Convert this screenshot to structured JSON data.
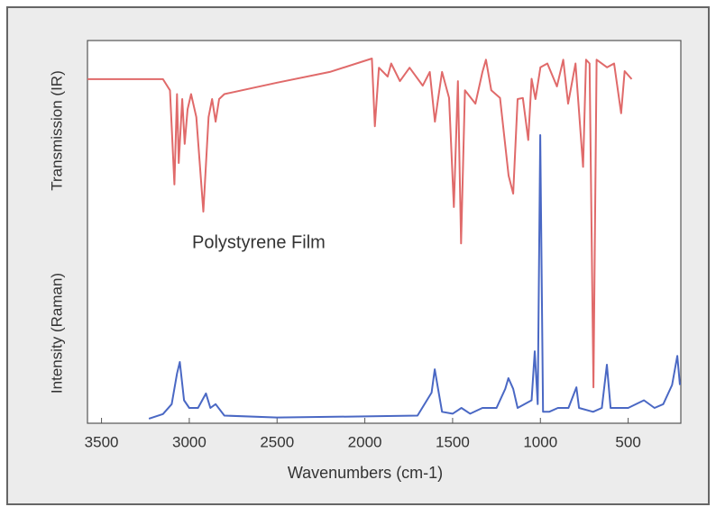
{
  "chart_data": {
    "type": "line",
    "annotation": "Polystyrene Film",
    "x_label": "Wavenumbers  (cm-1)",
    "y_labels": [
      "Intensity (Raman)",
      "Transmission (IR)"
    ],
    "xlim": [
      3580,
      200
    ],
    "ylim": [
      0,
      100
    ],
    "xticks": [
      3500,
      3000,
      2500,
      2000,
      1500,
      1000,
      500
    ],
    "series": [
      {
        "color": "#e06a6a",
        "x": [
          3580,
          3300,
          3150,
          3110,
          3085,
          3070,
          3060,
          3040,
          3026,
          3010,
          2990,
          2960,
          2920,
          2890,
          2870,
          2850,
          2830,
          2800,
          2500,
          2200,
          1960,
          1943,
          1920,
          1870,
          1850,
          1800,
          1745,
          1670,
          1630,
          1601,
          1583,
          1560,
          1520,
          1493,
          1470,
          1452,
          1430,
          1370,
          1330,
          1310,
          1280,
          1230,
          1181,
          1155,
          1130,
          1100,
          1069,
          1050,
          1028,
          1000,
          960,
          906,
          870,
          842,
          800,
          757,
          740,
          720,
          698,
          680,
          620,
          580,
          540,
          520,
          480
        ],
        "values": [
          89.9,
          89.9,
          89.9,
          87,
          62.4,
          86,
          68,
          84.7,
          73,
          82,
          86,
          80,
          55.3,
          80,
          84.7,
          78.8,
          84.7,
          86,
          89,
          91.8,
          95.3,
          77.6,
          92.9,
          90.6,
          94,
          89.4,
          92.9,
          88.2,
          91.8,
          78.8,
          84.7,
          91.8,
          85,
          56.5,
          89.4,
          47,
          87,
          83.5,
          91.8,
          95,
          87,
          85,
          64.7,
          60,
          84.7,
          85,
          74,
          90,
          84.7,
          93,
          94,
          88,
          95,
          83.5,
          94,
          67,
          95,
          94,
          9.4,
          95,
          93,
          94,
          81,
          92,
          89.9
        ]
      },
      {
        "color": "#4a68c4",
        "x": [
          3230,
          3150,
          3100,
          3070,
          3054,
          3030,
          3000,
          2950,
          2905,
          2880,
          2850,
          2800,
          2500,
          2000,
          1700,
          1620,
          1602,
          1583,
          1560,
          1500,
          1450,
          1400,
          1330,
          1250,
          1200,
          1182,
          1155,
          1130,
          1050,
          1032,
          1015,
          1001,
          985,
          950,
          900,
          840,
          795,
          780,
          700,
          650,
          621,
          600,
          500,
          410,
          350,
          300,
          250,
          220,
          205
        ],
        "values": [
          1.2,
          2.4,
          5,
          13,
          16,
          6,
          4,
          4,
          7.8,
          4,
          5,
          2,
          1.5,
          1.8,
          2,
          8,
          14.1,
          9,
          3,
          2.5,
          4,
          2.5,
          4,
          4,
          9,
          11.8,
          9,
          4,
          6,
          18.8,
          5,
          75.3,
          3,
          3,
          4,
          4,
          9.4,
          4,
          3,
          4,
          15.3,
          4,
          4,
          6,
          4,
          5,
          10,
          17.6,
          10
        ]
      }
    ]
  }
}
